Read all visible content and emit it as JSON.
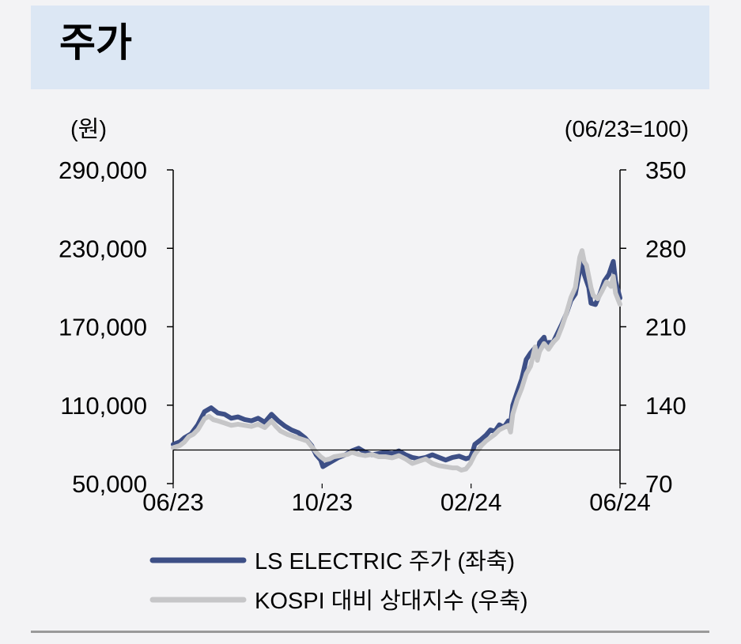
{
  "header": {
    "title": "주가"
  },
  "chart_data": {
    "type": "line",
    "left_axis": {
      "unit": "(원)",
      "min": 50000,
      "max": 290000,
      "ticks": [
        50000,
        110000,
        170000,
        230000,
        290000
      ],
      "tick_labels": [
        "50,000",
        "110,000",
        "170,000",
        "230,000",
        "290,000"
      ]
    },
    "right_axis": {
      "unit": "(06/23=100)",
      "min": 70,
      "max": 350,
      "ticks": [
        70,
        140,
        210,
        280,
        350
      ],
      "tick_labels": [
        "70",
        "140",
        "210",
        "280",
        "350"
      ]
    },
    "x_tick_labels": [
      "06/23",
      "10/23",
      "02/24",
      "06/24"
    ],
    "x_tick_positions": [
      0,
      0.3333,
      0.6667,
      1.0
    ],
    "reference_line": {
      "axis": "right",
      "value": 100
    },
    "legend_position": "bottom",
    "grid": false,
    "series": [
      {
        "name": "LS ELECTRIC 주가 (좌축)",
        "axis": "left",
        "color": "#3d4f86",
        "points": [
          [
            0,
            80000
          ],
          [
            0.015,
            82000
          ],
          [
            0.025,
            85000
          ],
          [
            0.04,
            88000
          ],
          [
            0.055,
            95000
          ],
          [
            0.07,
            105000
          ],
          [
            0.085,
            108000
          ],
          [
            0.1,
            104000
          ],
          [
            0.115,
            103000
          ],
          [
            0.13,
            100000
          ],
          [
            0.145,
            101000
          ],
          [
            0.16,
            99000
          ],
          [
            0.175,
            98000
          ],
          [
            0.19,
            100000
          ],
          [
            0.205,
            97000
          ],
          [
            0.22,
            103000
          ],
          [
            0.235,
            98000
          ],
          [
            0.25,
            94000
          ],
          [
            0.265,
            91000
          ],
          [
            0.28,
            89000
          ],
          [
            0.295,
            85000
          ],
          [
            0.31,
            79000
          ],
          [
            0.32,
            72000
          ],
          [
            0.33,
            68000
          ],
          [
            0.335,
            63000
          ],
          [
            0.345,
            65000
          ],
          [
            0.355,
            67000
          ],
          [
            0.37,
            70000
          ],
          [
            0.385,
            72000
          ],
          [
            0.4,
            75000
          ],
          [
            0.415,
            77000
          ],
          [
            0.43,
            74000
          ],
          [
            0.445,
            72000
          ],
          [
            0.46,
            73000
          ],
          [
            0.475,
            74000
          ],
          [
            0.49,
            73000
          ],
          [
            0.505,
            75000
          ],
          [
            0.52,
            72000
          ],
          [
            0.535,
            70000
          ],
          [
            0.55,
            69000
          ],
          [
            0.565,
            70000
          ],
          [
            0.58,
            72000
          ],
          [
            0.595,
            70000
          ],
          [
            0.61,
            68000
          ],
          [
            0.625,
            70000
          ],
          [
            0.64,
            71000
          ],
          [
            0.655,
            69000
          ],
          [
            0.665,
            70000
          ],
          [
            0.67,
            74000
          ],
          [
            0.675,
            80000
          ],
          [
            0.69,
            84000
          ],
          [
            0.7,
            87000
          ],
          [
            0.71,
            91000
          ],
          [
            0.72,
            90000
          ],
          [
            0.73,
            95000
          ],
          [
            0.74,
            93000
          ],
          [
            0.75,
            98000
          ],
          [
            0.755,
            95000
          ],
          [
            0.76,
            110000
          ],
          [
            0.77,
            120000
          ],
          [
            0.78,
            130000
          ],
          [
            0.79,
            145000
          ],
          [
            0.8,
            150000
          ],
          [
            0.81,
            154000
          ],
          [
            0.815,
            148000
          ],
          [
            0.82,
            158000
          ],
          [
            0.83,
            162000
          ],
          [
            0.835,
            155000
          ],
          [
            0.84,
            158000
          ],
          [
            0.85,
            158000
          ],
          [
            0.86,
            165000
          ],
          [
            0.87,
            172000
          ],
          [
            0.88,
            180000
          ],
          [
            0.89,
            190000
          ],
          [
            0.9,
            195000
          ],
          [
            0.91,
            213000
          ],
          [
            0.915,
            222000
          ],
          [
            0.92,
            210000
          ],
          [
            0.93,
            200000
          ],
          [
            0.935,
            188000
          ],
          [
            0.945,
            187000
          ],
          [
            0.955,
            195000
          ],
          [
            0.965,
            205000
          ],
          [
            0.975,
            210000
          ],
          [
            0.98,
            215000
          ],
          [
            0.985,
            220000
          ],
          [
            0.99,
            205000
          ],
          [
            1.0,
            192000
          ]
        ]
      },
      {
        "name": "KOSPI 대비 상대지수 (우축)",
        "axis": "right",
        "color": "#c6c6c8",
        "points": [
          [
            0,
            102
          ],
          [
            0.015,
            104
          ],
          [
            0.025,
            107
          ],
          [
            0.035,
            112
          ],
          [
            0.045,
            114
          ],
          [
            0.055,
            118
          ],
          [
            0.07,
            128
          ],
          [
            0.08,
            130
          ],
          [
            0.09,
            127
          ],
          [
            0.1,
            126
          ],
          [
            0.115,
            124
          ],
          [
            0.13,
            122
          ],
          [
            0.145,
            123
          ],
          [
            0.16,
            122
          ],
          [
            0.175,
            121
          ],
          [
            0.19,
            123
          ],
          [
            0.205,
            120
          ],
          [
            0.22,
            126
          ],
          [
            0.23,
            121
          ],
          [
            0.24,
            117
          ],
          [
            0.255,
            114
          ],
          [
            0.27,
            112
          ],
          [
            0.285,
            110
          ],
          [
            0.3,
            108
          ],
          [
            0.31,
            103
          ],
          [
            0.32,
            98
          ],
          [
            0.33,
            94
          ],
          [
            0.34,
            91
          ],
          [
            0.35,
            92
          ],
          [
            0.36,
            94
          ],
          [
            0.375,
            95
          ],
          [
            0.39,
            96
          ],
          [
            0.4,
            98
          ],
          [
            0.415,
            96
          ],
          [
            0.43,
            95
          ],
          [
            0.445,
            96
          ],
          [
            0.46,
            94
          ],
          [
            0.475,
            94
          ],
          [
            0.49,
            93
          ],
          [
            0.505,
            95
          ],
          [
            0.52,
            92
          ],
          [
            0.535,
            88
          ],
          [
            0.55,
            90
          ],
          [
            0.565,
            92
          ],
          [
            0.58,
            88
          ],
          [
            0.595,
            86
          ],
          [
            0.61,
            85
          ],
          [
            0.625,
            84
          ],
          [
            0.635,
            84
          ],
          [
            0.645,
            82
          ],
          [
            0.655,
            83
          ],
          [
            0.665,
            88
          ],
          [
            0.675,
            96
          ],
          [
            0.69,
            104
          ],
          [
            0.7,
            108
          ],
          [
            0.71,
            111
          ],
          [
            0.72,
            114
          ],
          [
            0.73,
            118
          ],
          [
            0.74,
            120
          ],
          [
            0.75,
            122
          ],
          [
            0.755,
            116
          ],
          [
            0.76,
            132
          ],
          [
            0.77,
            145
          ],
          [
            0.78,
            155
          ],
          [
            0.79,
            168
          ],
          [
            0.8,
            175
          ],
          [
            0.81,
            192
          ],
          [
            0.815,
            180
          ],
          [
            0.82,
            188
          ],
          [
            0.83,
            195
          ],
          [
            0.84,
            190
          ],
          [
            0.85,
            196
          ],
          [
            0.86,
            200
          ],
          [
            0.87,
            210
          ],
          [
            0.88,
            222
          ],
          [
            0.89,
            236
          ],
          [
            0.9,
            245
          ],
          [
            0.91,
            272
          ],
          [
            0.915,
            278
          ],
          [
            0.92,
            268
          ],
          [
            0.925,
            265
          ],
          [
            0.935,
            245
          ],
          [
            0.94,
            238
          ],
          [
            0.95,
            235
          ],
          [
            0.96,
            242
          ],
          [
            0.97,
            250
          ],
          [
            0.975,
            248
          ],
          [
            0.98,
            246
          ],
          [
            0.985,
            255
          ],
          [
            0.99,
            240
          ],
          [
            1.0,
            230
          ]
        ]
      }
    ]
  }
}
